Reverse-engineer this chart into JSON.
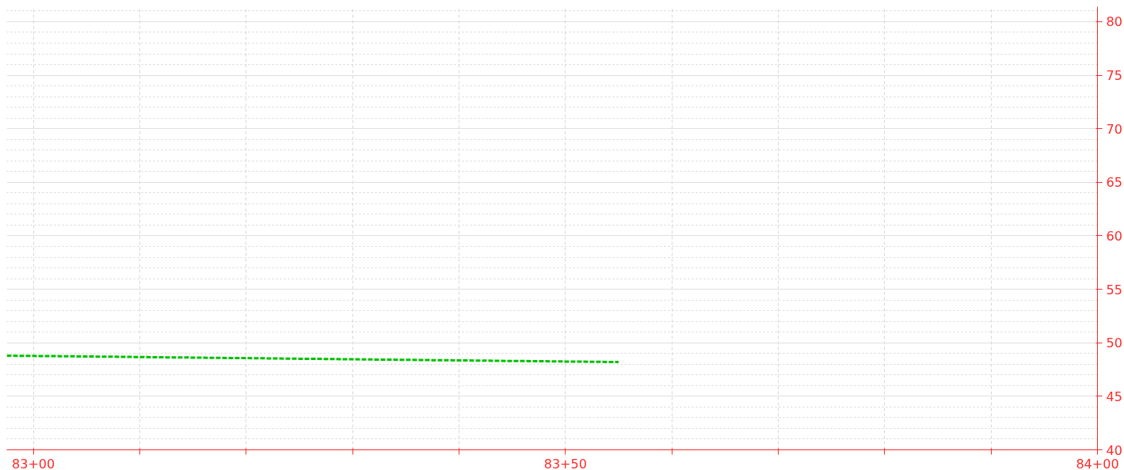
{
  "chart_data": {
    "type": "line",
    "categories": [
      null,
      "83+00",
      null,
      null,
      null,
      null,
      null,
      null,
      null,
      null,
      null,
      null,
      null,
      null,
      null,
      null,
      null,
      null,
      null,
      null,
      null,
      "83+50",
      null,
      null,
      null,
      null,
      null,
      null,
      null,
      null,
      null,
      null,
      null,
      null,
      null,
      null,
      null,
      null,
      null,
      null,
      null,
      "84+00"
    ],
    "series": [
      {
        "color": "#00c000",
        "values": [
          48.8,
          48.77,
          48.75,
          48.72,
          48.7,
          48.67,
          48.64,
          48.62,
          48.59,
          48.57,
          48.54,
          48.51,
          48.49,
          48.46,
          48.43,
          48.41,
          48.38,
          48.36,
          48.33,
          48.3,
          48.28,
          48.25,
          48.23,
          48.2,
          null,
          null,
          null,
          null,
          null,
          null,
          null,
          null,
          null,
          null,
          null,
          null,
          null,
          null,
          null,
          null,
          null,
          null
        ]
      }
    ],
    "line_style": "dashed",
    "ylim": [
      40,
      81.4
    ],
    "yticks": [
      40,
      45,
      50,
      55,
      60,
      65,
      70,
      75,
      80
    ],
    "grid": true
  }
}
